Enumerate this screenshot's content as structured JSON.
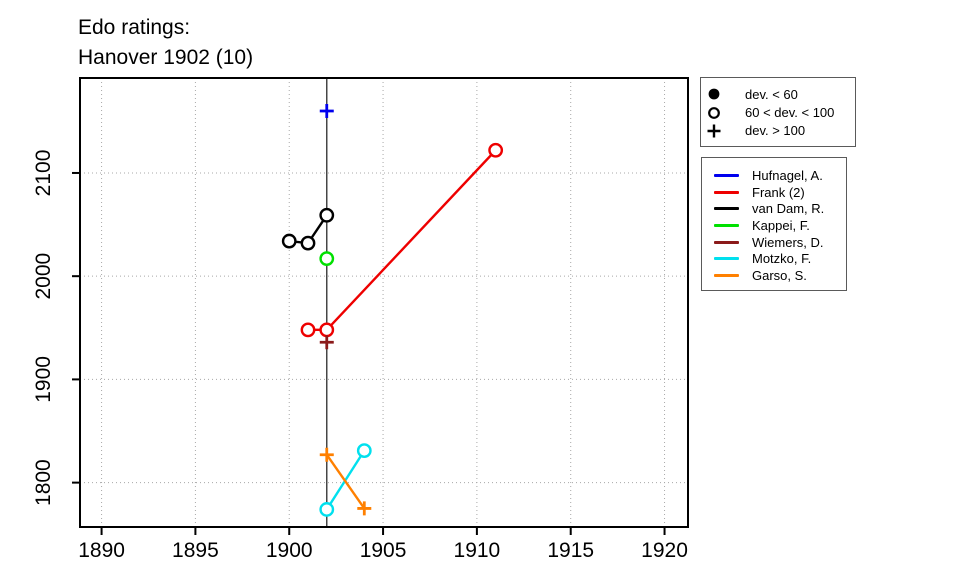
{
  "title": {
    "line1": "Edo ratings:",
    "line2": "Hanover 1902 (10)"
  },
  "marker_legend": {
    "items": [
      {
        "symbol": "filled-circle",
        "label": "dev. < 60"
      },
      {
        "symbol": "open-circle",
        "label": "60 < dev. < 100"
      },
      {
        "symbol": "plus",
        "label": "dev. > 100"
      }
    ]
  },
  "player_legend": {
    "items": [
      {
        "label": "Hufnagel, A.",
        "color": "#0000EE"
      },
      {
        "label": "Frank (2)",
        "color": "#EE0000"
      },
      {
        "label": "van Dam, R.",
        "color": "#000000"
      },
      {
        "label": "Kappei, F.",
        "color": "#00E000"
      },
      {
        "label": "Wiemers, D.",
        "color": "#8B1A1A"
      },
      {
        "label": "Motzko, F.",
        "color": "#00E0EE"
      },
      {
        "label": "Garso, S.",
        "color": "#FF8000"
      }
    ]
  },
  "chart_data": {
    "type": "scatter",
    "title": "Edo ratings: Hanover 1902 (10)",
    "xlabel": "",
    "ylabel": "",
    "xlim": [
      1888.85,
      1921.25
    ],
    "ylim": [
      1757,
      2192
    ],
    "x_ticks": [
      1890,
      1895,
      1900,
      1905,
      1910,
      1915,
      1920
    ],
    "y_ticks": [
      1800,
      1900,
      2000,
      2100
    ],
    "grid": "dotted",
    "event_year": 1902,
    "legend_position": "right",
    "marker_meaning": {
      "filled-circle": "dev. < 60",
      "open-circle": "60 < dev. < 100",
      "plus": "dev. > 100"
    },
    "series": [
      {
        "name": "Hufnagel, A.",
        "color": "#0000EE",
        "points": [
          {
            "x": 1902,
            "y": 2160,
            "marker": "plus"
          }
        ]
      },
      {
        "name": "Frank (2)",
        "color": "#EE0000",
        "points": [
          {
            "x": 1901,
            "y": 1948,
            "marker": "open-circle"
          },
          {
            "x": 1902,
            "y": 1948,
            "marker": "open-circle"
          },
          {
            "x": 1911,
            "y": 2122,
            "marker": "open-circle"
          }
        ]
      },
      {
        "name": "van Dam, R.",
        "color": "#000000",
        "points": [
          {
            "x": 1900,
            "y": 2034,
            "marker": "open-circle"
          },
          {
            "x": 1901,
            "y": 2032,
            "marker": "open-circle"
          },
          {
            "x": 1902,
            "y": 2059,
            "marker": "open-circle"
          }
        ]
      },
      {
        "name": "Kappei, F.",
        "color": "#00E000",
        "points": [
          {
            "x": 1902,
            "y": 2017,
            "marker": "open-circle"
          }
        ]
      },
      {
        "name": "Wiemers, D.",
        "color": "#8B1A1A",
        "points": [
          {
            "x": 1902,
            "y": 1936,
            "marker": "plus"
          }
        ]
      },
      {
        "name": "Motzko, F.",
        "color": "#00E0EE",
        "points": [
          {
            "x": 1902,
            "y": 1774,
            "marker": "open-circle"
          },
          {
            "x": 1904,
            "y": 1831,
            "marker": "open-circle"
          }
        ]
      },
      {
        "name": "Garso, S.",
        "color": "#FF8000",
        "points": [
          {
            "x": 1902,
            "y": 1827,
            "marker": "plus"
          },
          {
            "x": 1904,
            "y": 1775,
            "marker": "plus"
          }
        ]
      }
    ]
  }
}
